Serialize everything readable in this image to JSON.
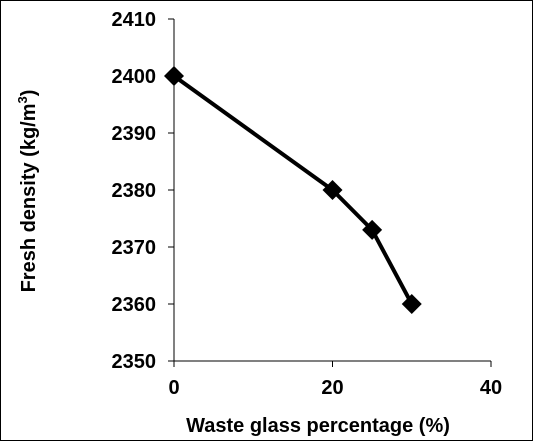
{
  "chart_data": {
    "type": "line",
    "title": "",
    "xlabel": "Waste glass percentage (%)",
    "ylabel_main": "Fresh density (kg/m",
    "ylabel_sup": "3",
    "ylabel_close": ")",
    "xlim": [
      0,
      40
    ],
    "ylim": [
      2350,
      2410
    ],
    "xticks": [
      0,
      20,
      40
    ],
    "yticks": [
      2350,
      2360,
      2370,
      2380,
      2390,
      2400,
      2410
    ],
    "grid": false,
    "marker": "diamond",
    "line_color": "#000000",
    "series": [
      {
        "x": [
          0,
          20,
          25,
          30
        ],
        "y": [
          2400,
          2380,
          2373,
          2360
        ]
      }
    ]
  }
}
